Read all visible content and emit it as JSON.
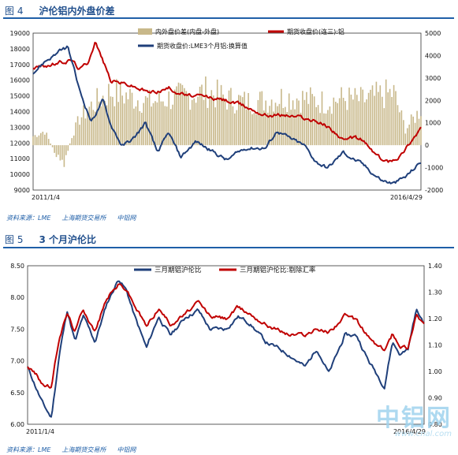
{
  "figures": [
    {
      "label": "图 4",
      "title": "沪伦铝内外盘价差",
      "source": [
        "资料来源：LME",
        "上海期货交易所",
        "中铝网"
      ]
    },
    {
      "label": "图 5",
      "title": "3 个月沪伦比",
      "source": [
        "资料来源：LME",
        "上海期货交易所",
        "中铝网"
      ]
    }
  ],
  "watermark": {
    "main": "中铝网",
    "url": "www.cnal.com"
  },
  "chart_data": [
    {
      "type": "line",
      "x_start_label": "2011/1/4",
      "x_end_label": "2016/4/29",
      "ylim_left": [
        9000,
        19000
      ],
      "yticks_left": [
        9000,
        10000,
        11000,
        12000,
        13000,
        14000,
        15000,
        16000,
        17000,
        18000,
        19000
      ],
      "ylim_right": [
        -2000,
        5000
      ],
      "yticks_right": [
        -2000,
        -1000,
        0,
        1000,
        2000,
        3000,
        4000,
        5000
      ],
      "legend": [
        "内外盘价差(内盘-外盘)",
        "期货收盘价(连三):铝",
        "期货收盘价:LME3个月铝:换算值"
      ],
      "colors": {
        "spread": "#c8b88a",
        "shfe": "#c00000",
        "lme": "#1f3f7a"
      },
      "series": [
        {
          "name": "内外盘价差(内盘-外盘)",
          "axis": "right",
          "style": "column",
          "x": [
            0,
            0.03,
            0.06,
            0.08,
            0.1,
            0.12,
            0.15,
            0.2,
            0.25,
            0.3,
            0.35,
            0.4,
            0.45,
            0.5,
            0.55,
            0.6,
            0.65,
            0.7,
            0.75,
            0.8,
            0.85,
            0.9,
            0.93,
            0.96,
            1.0
          ],
          "values": [
            500,
            800,
            -600,
            -1100,
            500,
            1500,
            2200,
            3000,
            2700,
            2400,
            2600,
            2800,
            3000,
            2600,
            2400,
            2500,
            2700,
            2600,
            2400,
            2600,
            2500,
            2800,
            2900,
            900,
            2000
          ]
        },
        {
          "name": "期货收盘价(连三):铝",
          "axis": "left",
          "x": [
            0,
            0.05,
            0.1,
            0.12,
            0.14,
            0.16,
            0.2,
            0.25,
            0.3,
            0.35,
            0.4,
            0.45,
            0.5,
            0.55,
            0.6,
            0.65,
            0.7,
            0.75,
            0.78,
            0.8,
            0.83,
            0.85,
            0.87,
            0.9,
            0.92,
            0.95,
            0.97,
            1.0
          ],
          "values": [
            16800,
            17000,
            17300,
            16700,
            17100,
            18500,
            16000,
            15700,
            15200,
            15500,
            15000,
            14900,
            14700,
            14300,
            13800,
            13800,
            13600,
            13200,
            12700,
            12100,
            12300,
            12200,
            11600,
            10900,
            10800,
            11300,
            12000,
            13000
          ]
        },
        {
          "name": "期货收盘价:LME3个月铝:换算值",
          "axis": "left",
          "x": [
            0,
            0.03,
            0.06,
            0.09,
            0.12,
            0.15,
            0.18,
            0.2,
            0.23,
            0.26,
            0.29,
            0.32,
            0.35,
            0.38,
            0.42,
            0.46,
            0.5,
            0.55,
            0.6,
            0.63,
            0.66,
            0.7,
            0.73,
            0.76,
            0.8,
            0.85,
            0.88,
            0.9,
            0.93,
            0.96,
            1.0
          ],
          "values": [
            16500,
            17200,
            17700,
            18100,
            15300,
            13400,
            14700,
            13200,
            11800,
            12300,
            13300,
            11400,
            12600,
            11100,
            12100,
            11500,
            10900,
            11700,
            11700,
            12800,
            12300,
            11800,
            10800,
            10400,
            11400,
            10600,
            10000,
            9600,
            9400,
            9800,
            10800
          ]
        }
      ]
    },
    {
      "type": "line",
      "x_start_label": "2011/1/4",
      "x_end_label": "2016/4/29",
      "ylim_left": [
        6.0,
        8.5
      ],
      "yticks_left": [
        "6.00",
        "6.50",
        "7.00",
        "7.50",
        "8.00",
        "8.50"
      ],
      "ylim_right": [
        0.8,
        1.4
      ],
      "yticks_right": [
        "0.80",
        "0.90",
        "1.00",
        "1.10",
        "1.20",
        "1.30",
        "1.40"
      ],
      "legend": [
        "三月期铝沪伦比",
        "三月期铝沪伦比:剔除汇率"
      ],
      "colors": {
        "ratio": "#1f3f7a",
        "ratio_fx": "#c00000"
      },
      "series": [
        {
          "name": "三月期铝沪伦比",
          "axis": "left",
          "x": [
            0,
            0.02,
            0.04,
            0.06,
            0.08,
            0.1,
            0.12,
            0.14,
            0.17,
            0.2,
            0.23,
            0.25,
            0.27,
            0.3,
            0.33,
            0.36,
            0.4,
            0.43,
            0.46,
            0.5,
            0.53,
            0.56,
            0.6,
            0.63,
            0.66,
            0.7,
            0.73,
            0.76,
            0.8,
            0.83,
            0.86,
            0.88,
            0.9,
            0.92,
            0.94,
            0.96,
            0.98,
            1.0
          ],
          "values": [
            6.9,
            6.6,
            6.3,
            6.1,
            7.1,
            7.8,
            7.3,
            7.7,
            7.3,
            7.9,
            8.3,
            8.1,
            7.7,
            7.2,
            7.7,
            7.4,
            7.7,
            7.8,
            7.5,
            7.5,
            7.7,
            7.6,
            7.3,
            7.2,
            7.1,
            6.9,
            7.2,
            6.8,
            7.4,
            7.4,
            7.0,
            6.8,
            6.6,
            7.3,
            7.1,
            7.2,
            7.8,
            7.6
          ]
        },
        {
          "name": "三月期铝沪伦比:剔除汇率",
          "axis": "right",
          "x": [
            0,
            0.02,
            0.04,
            0.06,
            0.08,
            0.1,
            0.12,
            0.14,
            0.17,
            0.2,
            0.23,
            0.25,
            0.27,
            0.3,
            0.33,
            0.36,
            0.4,
            0.43,
            0.46,
            0.5,
            0.53,
            0.56,
            0.6,
            0.63,
            0.66,
            0.7,
            0.73,
            0.76,
            0.8,
            0.83,
            0.86,
            0.88,
            0.9,
            0.92,
            0.94,
            0.96,
            0.98,
            1.0
          ],
          "values": [
            1.02,
            0.99,
            0.95,
            0.94,
            1.13,
            1.22,
            1.15,
            1.24,
            1.15,
            1.28,
            1.33,
            1.31,
            1.25,
            1.17,
            1.24,
            1.18,
            1.22,
            1.26,
            1.21,
            1.2,
            1.24,
            1.22,
            1.18,
            1.16,
            1.14,
            1.14,
            1.16,
            1.15,
            1.21,
            1.19,
            1.13,
            1.1,
            1.08,
            1.14,
            1.1,
            1.09,
            1.22,
            1.18
          ]
        }
      ]
    }
  ]
}
